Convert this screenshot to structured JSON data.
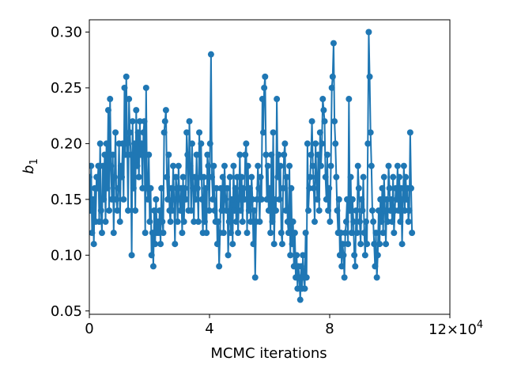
{
  "chart_data": {
    "type": "line",
    "xlabel": "MCMC iterations",
    "ylabel": "b",
    "ylabel_subscript": "1",
    "xlim": [
      0,
      12
    ],
    "ylim": [
      0.047,
      0.311
    ],
    "x_offset_text": "×10",
    "x_offset_exponent": "4",
    "x_tick_labels": [
      "0",
      "4",
      "8",
      "12"
    ],
    "x_ticks": [
      0,
      4,
      8,
      12
    ],
    "y_tick_labels": [
      "0.05",
      "0.10",
      "0.15",
      "0.20",
      "0.25",
      "0.30"
    ],
    "y_ticks": [
      0.05,
      0.1,
      0.15,
      0.2,
      0.25,
      0.3
    ],
    "grid": false,
    "marker": "circle",
    "color": "#1f77b4",
    "series": [
      {
        "x_start": 0.0,
        "x_step": 0.03,
        "values": [
          0.17,
          0.14,
          0.18,
          0.12,
          0.15,
          0.11,
          0.16,
          0.13,
          0.17,
          0.16,
          0.18,
          0.13,
          0.2,
          0.14,
          0.12,
          0.18,
          0.15,
          0.19,
          0.13,
          0.2,
          0.16,
          0.23,
          0.14,
          0.24,
          0.18,
          0.15,
          0.19,
          0.12,
          0.17,
          0.21,
          0.15,
          0.14,
          0.16,
          0.2,
          0.13,
          0.18,
          0.17,
          0.2,
          0.15,
          0.25,
          0.19,
          0.26,
          0.2,
          0.14,
          0.24,
          0.21,
          0.19,
          0.1,
          0.22,
          0.16,
          0.2,
          0.14,
          0.23,
          0.18,
          0.21,
          0.17,
          0.22,
          0.19,
          0.2,
          0.16,
          0.21,
          0.22,
          0.12,
          0.25,
          0.16,
          0.15,
          0.19,
          0.13,
          0.16,
          0.1,
          0.12,
          0.09,
          0.14,
          0.11,
          0.15,
          0.12,
          0.13,
          0.12,
          0.14,
          0.11,
          0.16,
          0.13,
          0.12,
          0.21,
          0.22,
          0.23,
          0.17,
          0.15,
          0.19,
          0.14,
          0.13,
          0.16,
          0.14,
          0.18,
          0.15,
          0.11,
          0.17,
          0.16,
          0.13,
          0.18,
          0.15,
          0.14,
          0.16,
          0.12,
          0.17,
          0.13,
          0.16,
          0.15,
          0.21,
          0.19,
          0.14,
          0.22,
          0.18,
          0.14,
          0.2,
          0.16,
          0.13,
          0.17,
          0.15,
          0.19,
          0.16,
          0.13,
          0.21,
          0.17,
          0.2,
          0.15,
          0.12,
          0.17,
          0.13,
          0.16,
          0.12,
          0.19,
          0.18,
          0.14,
          0.2,
          0.28,
          0.17,
          0.15,
          0.18,
          0.14,
          0.13,
          0.16,
          0.11,
          0.13,
          0.09,
          0.12,
          0.16,
          0.14,
          0.17,
          0.12,
          0.18,
          0.15,
          0.14,
          0.16,
          0.1,
          0.13,
          0.17,
          0.12,
          0.15,
          0.11,
          0.18,
          0.14,
          0.16,
          0.13,
          0.17,
          0.12,
          0.15,
          0.19,
          0.14,
          0.17,
          0.13,
          0.16,
          0.15,
          0.19,
          0.2,
          0.12,
          0.18,
          0.14,
          0.16,
          0.13,
          0.17,
          0.15,
          0.11,
          0.14,
          0.08,
          0.13,
          0.15,
          0.18,
          0.16,
          0.13,
          0.17,
          0.15,
          0.24,
          0.21,
          0.25,
          0.26,
          0.19,
          0.15,
          0.18,
          0.14,
          0.16,
          0.12,
          0.19,
          0.13,
          0.21,
          0.11,
          0.15,
          0.14,
          0.24,
          0.17,
          0.19,
          0.15,
          0.18,
          0.12,
          0.11,
          0.16,
          0.19,
          0.2,
          0.14,
          0.17,
          0.13,
          0.12,
          0.18,
          0.1,
          0.16,
          0.11,
          0.13,
          0.09,
          0.12,
          0.08,
          0.1,
          0.07,
          0.09,
          0.08,
          0.06,
          0.09,
          0.07,
          0.1,
          0.08,
          0.07,
          0.12,
          0.08,
          0.2,
          0.14,
          0.16,
          0.17,
          0.19,
          0.22,
          0.18,
          0.16,
          0.13,
          0.2,
          0.17,
          0.15,
          0.19,
          0.14,
          0.21,
          0.18,
          0.2,
          0.24,
          0.23,
          0.22,
          0.17,
          0.15,
          0.19,
          0.14,
          0.16,
          0.13,
          0.18,
          0.25,
          0.26,
          0.29,
          0.22,
          0.2,
          0.17,
          0.14,
          0.12,
          0.15,
          0.1,
          0.12,
          0.09,
          0.11,
          0.1,
          0.08,
          0.12,
          0.13,
          0.15,
          0.11,
          0.24,
          0.14,
          0.17,
          0.12,
          0.15,
          0.13,
          0.1,
          0.09,
          0.14,
          0.12,
          0.18,
          0.16,
          0.13,
          0.11,
          0.15,
          0.14,
          0.17,
          0.12,
          0.1,
          0.13,
          0.11,
          0.2,
          0.3,
          0.26,
          0.21,
          0.18,
          0.14,
          0.13,
          0.11,
          0.09,
          0.12,
          0.08,
          0.1,
          0.14,
          0.11,
          0.15,
          0.13,
          0.16,
          0.12,
          0.17,
          0.14,
          0.11,
          0.15,
          0.13,
          0.18,
          0.16,
          0.14,
          0.15,
          0.13,
          0.17,
          0.12,
          0.14,
          0.16,
          0.15,
          0.18,
          0.14,
          0.17,
          0.13,
          0.16,
          0.11,
          0.15,
          0.18,
          0.14,
          0.17,
          0.15,
          0.16,
          0.13,
          0.14,
          0.21,
          0.16,
          0.12
        ]
      }
    ]
  }
}
